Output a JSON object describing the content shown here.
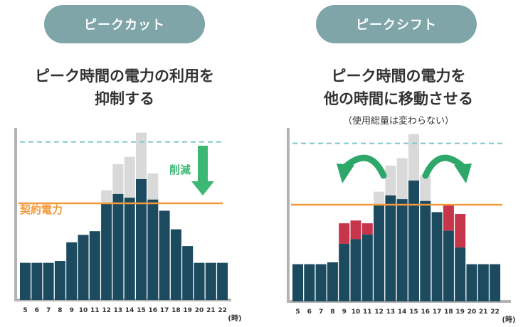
{
  "colors": {
    "pill": "#7fa5a9",
    "bar": "#1c4a5f",
    "cut": "#d9d9d9",
    "shifted": "#c6354a",
    "contract": "#f39a3c",
    "peakline": "#7ec6c6",
    "arrow_down": "#3db874",
    "arrow_curve": "#2ea86a",
    "axis": "#b3b3b3"
  },
  "left": {
    "pill_label": "ピークカット",
    "heading_line1": "ピーク時間の電力の利用を",
    "heading_line2": "抑制する",
    "annotation": "削減",
    "contract_label": "契約電力"
  },
  "right": {
    "pill_label": "ピークシフト",
    "heading_line1": "ピーク時間の電力を",
    "heading_line2": "他の時間に移動させる",
    "subnote": "（使用総量は変わらない）"
  },
  "chart_data": [
    {
      "type": "bar",
      "xlabel": "(時)",
      "categories": [
        "5",
        "6",
        "7",
        "8",
        "9",
        "10",
        "11",
        "12",
        "13",
        "14",
        "15",
        "16",
        "17",
        "18",
        "19",
        "20",
        "21",
        "22"
      ],
      "contract_level": 104,
      "peak_level": 170,
      "ylim": [
        0,
        185
      ],
      "series": [
        {
          "role": "after",
          "values": [
            40,
            40,
            40,
            42,
            62,
            70,
            74,
            104,
            114,
            110,
            130,
            108,
            96,
            76,
            58,
            40,
            40,
            40
          ]
        },
        {
          "role": "cut",
          "values": [
            0,
            0,
            0,
            0,
            0,
            0,
            0,
            14,
            32,
            44,
            50,
            28,
            0,
            0,
            0,
            0,
            0,
            0
          ]
        }
      ]
    },
    {
      "type": "bar",
      "xlabel": "(時)",
      "categories": [
        "5",
        "6",
        "7",
        "8",
        "9",
        "10",
        "11",
        "12",
        "13",
        "14",
        "15",
        "16",
        "17",
        "18",
        "19",
        "20",
        "21",
        "22"
      ],
      "contract_level": 104,
      "peak_level": 170,
      "ylim": [
        0,
        185
      ],
      "series": [
        {
          "role": "after",
          "values": [
            40,
            40,
            40,
            42,
            62,
            67,
            72,
            104,
            114,
            110,
            130,
            108,
            96,
            76,
            58,
            40,
            40,
            40
          ]
        },
        {
          "role": "cut",
          "values": [
            0,
            0,
            0,
            0,
            0,
            0,
            0,
            14,
            32,
            44,
            50,
            28,
            0,
            0,
            0,
            0,
            0,
            0
          ]
        },
        {
          "role": "shifted",
          "values": [
            0,
            0,
            0,
            0,
            22,
            20,
            12,
            0,
            0,
            0,
            0,
            0,
            0,
            28,
            36,
            0,
            0,
            0
          ]
        }
      ]
    }
  ]
}
